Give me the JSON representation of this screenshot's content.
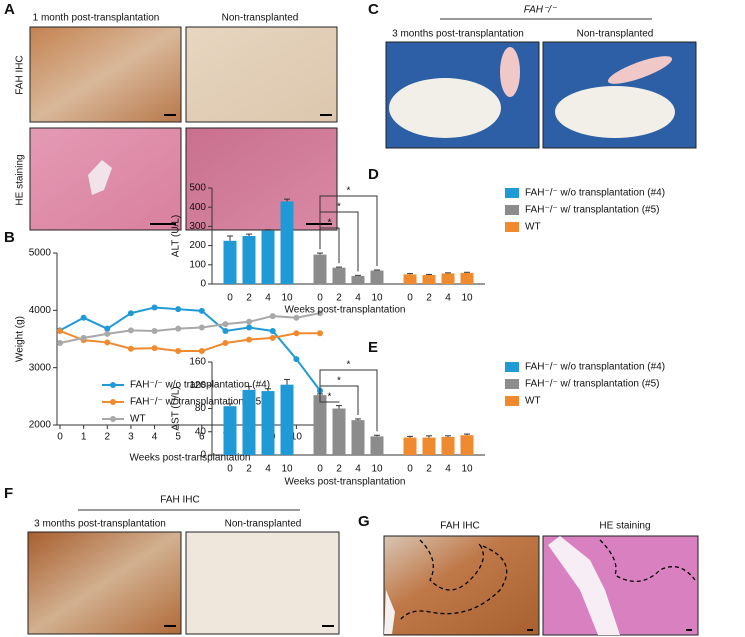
{
  "panels": {
    "A": {
      "label": "A",
      "headers": [
        "1 month post-transplantation",
        "Non-transplanted"
      ],
      "rows": [
        "FAH IHC",
        "HE staining"
      ]
    },
    "C": {
      "label": "C",
      "title": "FAH⁻/⁻",
      "headers": [
        "3 months post-transplantation",
        "Non-transplanted"
      ]
    },
    "F": {
      "label": "F",
      "title": "FAH IHC",
      "headers": [
        "3 months post-transplantation",
        "Non-transplanted"
      ]
    },
    "G": {
      "label": "G",
      "headers": [
        "FAH IHC",
        "HE staining"
      ]
    }
  },
  "chart_data": [
    {
      "type": "line",
      "panel": "B",
      "x_label": "Weeks post-transplantation",
      "y_label": "Weight (g)",
      "x": [
        0,
        1,
        2,
        3,
        4,
        5,
        6,
        7,
        8,
        9,
        10,
        11
      ],
      "xlim": [
        0,
        11
      ],
      "xticks": [
        0,
        1,
        2,
        3,
        4,
        5,
        6,
        7,
        8,
        9,
        10,
        11
      ],
      "ylim": [
        2000,
        5000
      ],
      "yticks": [
        2000,
        3000,
        4000,
        5000
      ],
      "series": [
        {
          "name": "FAH⁻/⁻ w/o transplantation (#4)",
          "color": "#1f9ad6",
          "values": [
            3650,
            3870,
            3680,
            3950,
            4050,
            4020,
            3990,
            3640,
            3700,
            3640,
            3150,
            2600
          ]
        },
        {
          "name": "FAH⁻/⁻ w/ transplantation (#5)",
          "color": "#f08a2e",
          "values": [
            3640,
            3480,
            3440,
            3330,
            3340,
            3290,
            3290,
            3430,
            3490,
            3520,
            3600,
            3600
          ]
        },
        {
          "name": "WT",
          "color": "#a8a8a8",
          "values": [
            3430,
            3520,
            3590,
            3650,
            3640,
            3680,
            3700,
            3760,
            3800,
            3900,
            3870,
            3950
          ]
        }
      ]
    },
    {
      "type": "bar",
      "panel": "D",
      "x_label": "Weeks post-transplantation",
      "y_label": "ALT (U/L)",
      "categories": [
        "0",
        "2",
        "4",
        "10",
        "0",
        "2",
        "4",
        "10",
        "0",
        "2",
        "4",
        "10"
      ],
      "ylim": [
        0,
        500
      ],
      "yticks": [
        0,
        100,
        200,
        300,
        400,
        500
      ],
      "series": [
        {
          "name": "FAH⁻/⁻ w/o transplantation (#4)",
          "color": "#1f9ad6",
          "values": [
            225,
            250,
            278,
            430,
            null,
            null,
            null,
            null,
            null,
            null,
            null,
            null
          ],
          "errors": [
            25,
            10,
            5,
            12,
            null,
            null,
            null,
            null,
            null,
            null,
            null,
            null
          ]
        },
        {
          "name": "FAH⁻/⁻ w/ transplantation (#5)",
          "color": "#8c8c8c",
          "values": [
            null,
            null,
            null,
            null,
            153,
            85,
            42,
            70,
            null,
            null,
            null,
            null
          ],
          "errors": [
            null,
            null,
            null,
            null,
            8,
            3,
            3,
            3,
            null,
            null,
            null,
            null
          ]
        },
        {
          "name": "WT",
          "color": "#f08a2e",
          "values": [
            null,
            null,
            null,
            null,
            null,
            null,
            null,
            null,
            50,
            47,
            55,
            58
          ],
          "errors": [
            null,
            null,
            null,
            null,
            null,
            null,
            null,
            null,
            4,
            3,
            3,
            3
          ]
        }
      ],
      "annotations": [
        "*",
        "*",
        "*"
      ]
    },
    {
      "type": "bar",
      "panel": "E",
      "x_label": "Weeks post-transplantation",
      "y_label": "AST (U/L)",
      "categories": [
        "0",
        "2",
        "4",
        "10",
        "0",
        "2",
        "4",
        "10",
        "0",
        "2",
        "4",
        "10"
      ],
      "ylim": [
        0,
        160
      ],
      "yticks": [
        0,
        40,
        80,
        120,
        160
      ],
      "series": [
        {
          "name": "FAH⁻/⁻ w/o transplantation (#4)",
          "color": "#1f9ad6",
          "values": [
            84,
            112,
            110,
            121,
            null,
            null,
            null,
            null,
            null,
            null,
            null,
            null
          ],
          "errors": [
            4,
            6,
            4,
            9,
            null,
            null,
            null,
            null,
            null,
            null,
            null,
            null
          ]
        },
        {
          "name": "FAH⁻/⁻ w/ transplantation (#5)",
          "color": "#8c8c8c",
          "values": [
            null,
            null,
            null,
            null,
            103,
            80,
            60,
            32,
            null,
            null,
            null,
            null
          ],
          "errors": [
            null,
            null,
            null,
            null,
            2,
            5,
            2,
            2,
            null,
            null,
            null,
            null
          ]
        },
        {
          "name": "WT",
          "color": "#f08a2e",
          "values": [
            null,
            null,
            null,
            null,
            null,
            null,
            null,
            null,
            30,
            30,
            31,
            34
          ],
          "errors": [
            null,
            null,
            null,
            null,
            null,
            null,
            null,
            null,
            2,
            3,
            2,
            2
          ]
        }
      ],
      "annotations": [
        "*",
        "*",
        "*"
      ]
    }
  ]
}
